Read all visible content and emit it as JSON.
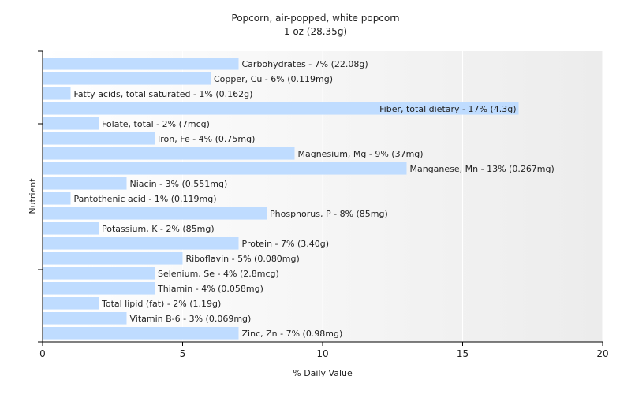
{
  "chart_data": {
    "type": "bar",
    "orientation": "horizontal",
    "title": "Popcorn, air-popped, white popcorn",
    "subtitle": "1 oz (28.35g)",
    "xlabel": "% Daily Value",
    "ylabel": "Nutrient",
    "xlim": [
      0,
      20
    ],
    "xticks": [
      0,
      5,
      10,
      15,
      20
    ],
    "grid": true,
    "bar_color": "#bfdcff",
    "categories": [
      "Carbohydrates",
      "Copper, Cu",
      "Fatty acids, total saturated",
      "Fiber, total dietary",
      "Folate, total",
      "Iron, Fe",
      "Magnesium, Mg",
      "Manganese, Mn",
      "Niacin",
      "Pantothenic acid",
      "Phosphorus, P",
      "Potassium, K",
      "Protein",
      "Riboflavin",
      "Selenium, Se",
      "Thiamin",
      "Total lipid (fat)",
      "Vitamin B-6",
      "Zinc, Zn"
    ],
    "values": [
      7,
      6,
      1,
      17,
      2,
      4,
      9,
      13,
      3,
      1,
      8,
      2,
      7,
      5,
      4,
      4,
      2,
      3,
      7
    ],
    "labels": [
      "Carbohydrates - 7% (22.08g)",
      "Copper, Cu - 6% (0.119mg)",
      "Fatty acids, total saturated - 1% (0.162g)",
      "Fiber, total dietary - 17% (4.3g)",
      "Folate, total - 2% (7mcg)",
      "Iron, Fe - 4% (0.75mg)",
      "Magnesium, Mg - 9% (37mg)",
      "Manganese, Mn - 13% (0.267mg)",
      "Niacin - 3% (0.551mg)",
      "Pantothenic acid - 1% (0.119mg)",
      "Phosphorus, P - 8% (85mg)",
      "Potassium, K - 2% (85mg)",
      "Protein - 7% (3.40g)",
      "Riboflavin - 5% (0.080mg)",
      "Selenium, Se - 4% (2.8mcg)",
      "Thiamin - 4% (0.058mg)",
      "Total lipid (fat) - 2% (1.19g)",
      "Vitamin B-6 - 3% (0.069mg)",
      "Zinc, Zn - 7% (0.98mg)"
    ]
  }
}
